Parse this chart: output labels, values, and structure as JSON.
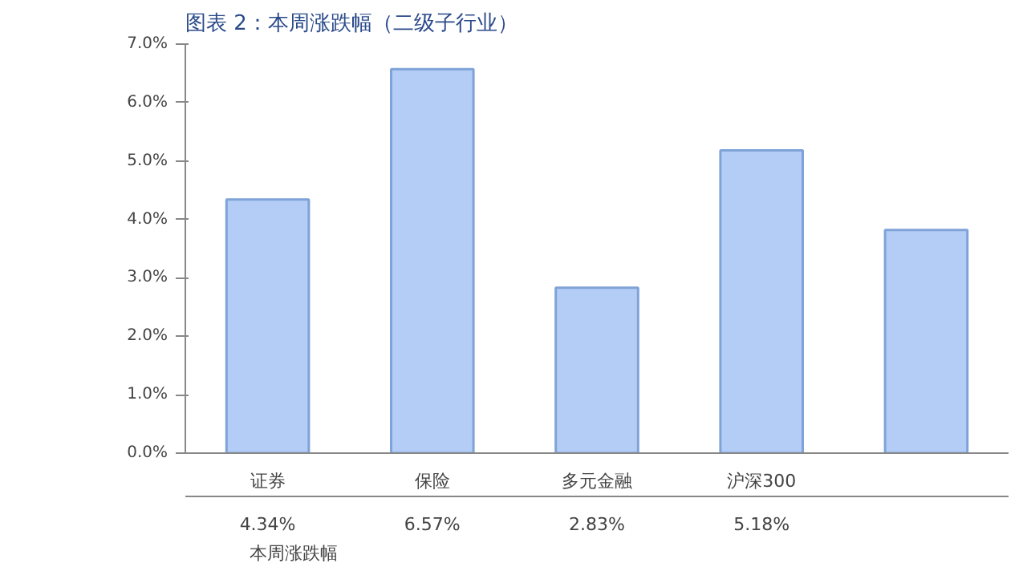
{
  "chart_data": {
    "type": "bar",
    "title": "图表 2：本周涨跌幅（二级子行业）",
    "categories": [
      "证券",
      "保险",
      "多元金融",
      "沪深300",
      null
    ],
    "series": [
      {
        "name": "本周涨跌幅",
        "color": "#b4cdf6",
        "values": [
          4.34,
          6.57,
          2.83,
          5.18,
          3.82
        ],
        "value_labels": [
          "4.34%",
          "6.57%",
          "2.83%",
          "5.18%",
          null
        ]
      }
    ],
    "ylim": [
      0,
      7
    ],
    "yticks": [
      {
        "value": 0,
        "label": "0.0%"
      },
      {
        "value": 1,
        "label": "1.0%"
      },
      {
        "value": 2,
        "label": "2.0%"
      },
      {
        "value": 3,
        "label": "3.0%"
      },
      {
        "value": 4,
        "label": "4.0%"
      },
      {
        "value": 5,
        "label": "5.0%"
      },
      {
        "value": 6,
        "label": "6.0%"
      },
      {
        "value": 7,
        "label": "7.0%"
      }
    ],
    "grid": false
  }
}
